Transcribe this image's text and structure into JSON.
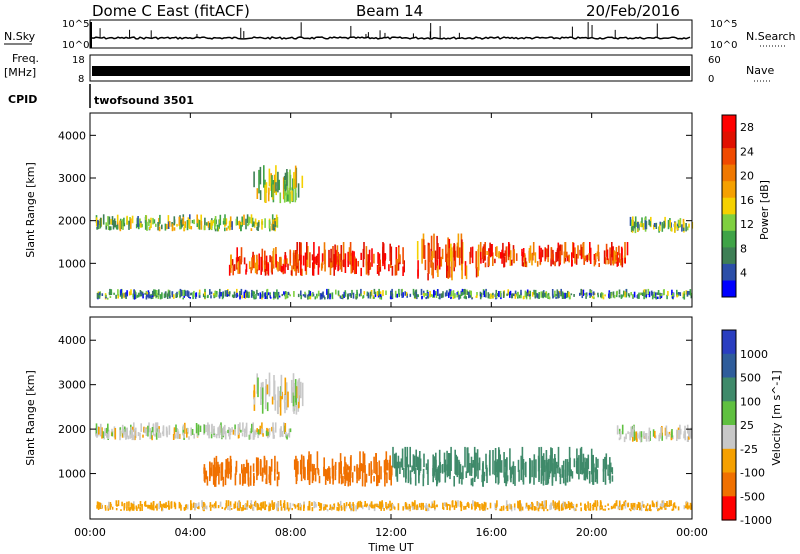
{
  "header": {
    "station": "Dome C East (fitACF)",
    "beam": "Beam 14",
    "date": "20/Feb/2016"
  },
  "top_panels": {
    "nsky_label": "N.Sky",
    "nsky_ticks": [
      "10^5",
      "10^0"
    ],
    "nsearch_label": "N.Search",
    "nsearch_ticks": [
      "10^5",
      "10^0"
    ],
    "freq_label": "Freq.",
    "freq_unit": "[MHz]",
    "freq_ticks": [
      "18",
      "8"
    ],
    "nave_label": "Nave",
    "nave_ticks": [
      "60",
      "0"
    ],
    "cpid_label": "CPID",
    "cpid_value": "twofsound 3501"
  },
  "colors": {
    "power": [
      "#0000ff",
      "#2c4fa8",
      "#3e7f55",
      "#3fa347",
      "#7fd040",
      "#f5d100",
      "#f5a000",
      "#f07800",
      "#f04a00",
      "#e01000",
      "#ff0000"
    ],
    "velocity": [
      "#2a3ec0",
      "#2f5d9b",
      "#3f8a6a",
      "#5fc040",
      "#c8c8c8",
      "#f5a000",
      "#f07000",
      "#ff0000"
    ]
  },
  "chart_data": [
    {
      "type": "heatmap",
      "title": "Power",
      "ylabel": "Slant Range [km]",
      "y_ticks": [
        "1000",
        "2000",
        "3000",
        "4000"
      ],
      "ylim": [
        0,
        4500
      ],
      "xlim_hours": [
        0,
        24
      ],
      "colorbar_label": "Power [dB]",
      "colorbar_ticks": [
        "4",
        "8",
        "12",
        "16",
        "20",
        "24",
        "28"
      ],
      "colorbar_range": [
        0,
        30
      ],
      "regions": [
        {
          "t0": 0.2,
          "t1": 7.5,
          "r0": 1750,
          "r1": 2150,
          "value": 12
        },
        {
          "t0": 5.5,
          "t1": 8.2,
          "r0": 700,
          "r1": 1400,
          "value": 24
        },
        {
          "t0": 8.2,
          "t1": 12.5,
          "r0": 700,
          "r1": 1500,
          "value": 26
        },
        {
          "t0": 13.0,
          "t1": 15.5,
          "r0": 600,
          "r1": 1700,
          "value": 22
        },
        {
          "t0": 15.5,
          "t1": 21.5,
          "r0": 900,
          "r1": 1500,
          "value": 24
        },
        {
          "t0": 21.5,
          "t1": 24.0,
          "r0": 1700,
          "r1": 2100,
          "value": 10
        },
        {
          "t0": 0.2,
          "t1": 24.0,
          "r0": 150,
          "r1": 400,
          "value": 8
        },
        {
          "t0": 6.5,
          "t1": 8.5,
          "r0": 2400,
          "r1": 3300,
          "value": 12
        }
      ]
    },
    {
      "type": "heatmap",
      "title": "Velocity",
      "ylabel": "Slant Range [km]",
      "y_ticks": [
        "1000",
        "2000",
        "3000",
        "4000"
      ],
      "ylim": [
        0,
        4500
      ],
      "xlim_hours": [
        0,
        24
      ],
      "xlabel": "Time UT",
      "x_ticks": [
        "00:00",
        "04:00",
        "08:00",
        "12:00",
        "16:00",
        "20:00",
        "00:00"
      ],
      "colorbar_label": "Velocity [m s^-1]",
      "colorbar_ticks": [
        "1000",
        "500",
        "100",
        "25",
        "-25",
        "-100",
        "-500",
        "-1000"
      ],
      "regions": [
        {
          "t0": 0.2,
          "t1": 8.0,
          "r0": 1750,
          "r1": 2150,
          "value": 0
        },
        {
          "t0": 4.5,
          "t1": 7.5,
          "r0": 700,
          "r1": 1400,
          "value": -200
        },
        {
          "t0": 8.0,
          "t1": 12.0,
          "r0": 700,
          "r1": 1500,
          "value": -150
        },
        {
          "t0": 12.0,
          "t1": 21.0,
          "r0": 700,
          "r1": 1600,
          "value": 200
        },
        {
          "t0": 21.0,
          "t1": 24.0,
          "r0": 1700,
          "r1": 2100,
          "value": 0
        },
        {
          "t0": 0.2,
          "t1": 24.0,
          "r0": 150,
          "r1": 400,
          "value": -50
        },
        {
          "t0": 6.5,
          "t1": 8.5,
          "r0": 2300,
          "r1": 3300,
          "value": 0
        }
      ]
    }
  ]
}
